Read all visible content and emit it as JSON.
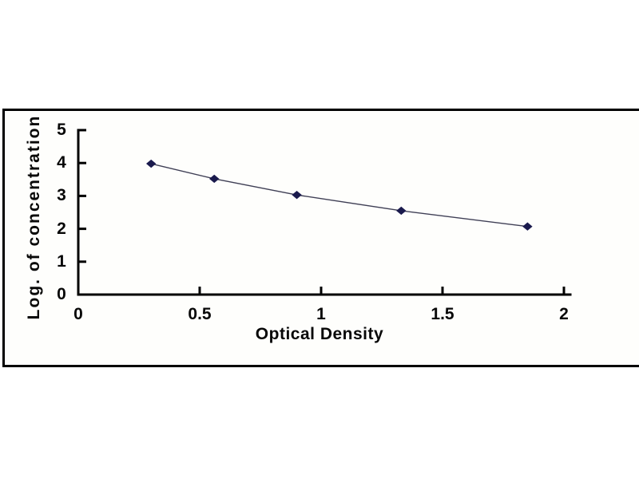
{
  "figure": {
    "background_color": "#ffffff",
    "frame_border_color": "#000000",
    "description": "ELISA standard curve plot inside a black-bordered frame"
  },
  "chart_data": {
    "type": "line",
    "title": "",
    "xlabel": "Optical Density",
    "ylabel": "Log. of concentration",
    "x": [
      0.3,
      0.56,
      0.9,
      1.33,
      1.85
    ],
    "y": [
      3.98,
      3.52,
      3.03,
      2.55,
      2.07
    ],
    "series": [
      {
        "name": "standard-curve",
        "marker": "diamond",
        "marker_color": "#1a1a4d",
        "line_color": "#3f3f55"
      }
    ],
    "xlim": [
      0,
      2
    ],
    "ylim": [
      0,
      5
    ],
    "xticks": [
      0,
      0.5,
      1,
      1.5,
      2
    ],
    "xtick_labels": [
      "0",
      "0.5",
      "1",
      "1.5",
      "2"
    ],
    "yticks": [
      0,
      1,
      2,
      3,
      4,
      5
    ],
    "ytick_labels": [
      "0",
      "1",
      "2",
      "3",
      "4",
      "5"
    ],
    "grid": false,
    "legend_position": "none",
    "axis_color": "#000000",
    "tick_direction": "in"
  }
}
